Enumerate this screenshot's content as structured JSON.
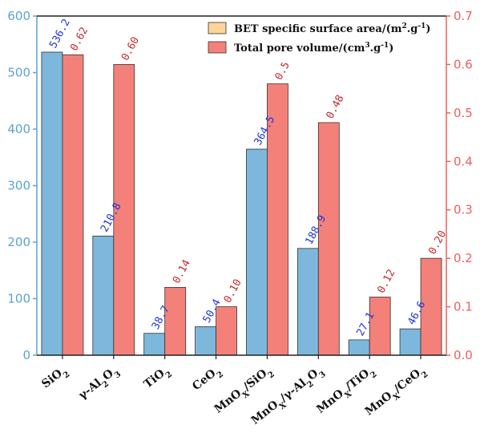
{
  "chart_data": {
    "type": "bar",
    "categories": [
      "SiO2",
      "γ-Al2O3",
      "TiO2",
      "CeO2",
      "MnOx/SiO2",
      "MnOx/γ-Al2O3",
      "MnOx/TiO2",
      "MnOx/CeO2"
    ],
    "category_labels": [
      [
        {
          "t": "SiO"
        },
        {
          "t": "2",
          "sub": true
        }
      ],
      [
        {
          "t": "γ-Al"
        },
        {
          "t": "2",
          "sub": true
        },
        {
          "t": "O"
        },
        {
          "t": "3",
          "sub": true
        }
      ],
      [
        {
          "t": "TiO"
        },
        {
          "t": "2",
          "sub": true
        }
      ],
      [
        {
          "t": "CeO"
        },
        {
          "t": "2",
          "sub": true
        }
      ],
      [
        {
          "t": "MnO"
        },
        {
          "t": "X",
          "sub": true
        },
        {
          "t": "/SiO"
        },
        {
          "t": "2",
          "sub": true
        }
      ],
      [
        {
          "t": "MnO"
        },
        {
          "t": "X",
          "sub": true
        },
        {
          "t": "/γ-Al"
        },
        {
          "t": "2",
          "sub": true
        },
        {
          "t": "O"
        },
        {
          "t": "3",
          "sub": true
        }
      ],
      [
        {
          "t": "MnO"
        },
        {
          "t": "X",
          "sub": true
        },
        {
          "t": "/TiO"
        },
        {
          "t": "2",
          "sub": true
        }
      ],
      [
        {
          "t": "MnO"
        },
        {
          "t": "X",
          "sub": true
        },
        {
          "t": "/CeO"
        },
        {
          "t": "2",
          "sub": true
        }
      ]
    ],
    "series": [
      {
        "name": "BET specific surface area/(m2.g-1)",
        "name_parts": [
          {
            "t": "BET specific surface area/(m"
          },
          {
            "t": "2",
            "sup": true
          },
          {
            "t": ".g"
          },
          {
            "t": "-1",
            "sup": true
          },
          {
            "t": ")"
          }
        ],
        "axis": "left",
        "values": [
          536.2,
          210.8,
          38.7,
          50.4,
          364.5,
          188.9,
          27.1,
          46.6
        ],
        "labels": [
          "536.2",
          "210.8",
          "38.7",
          "50.4",
          "364.5",
          "188.9",
          "27.1",
          "46.6"
        ],
        "color": "#7db8dc",
        "label_color": "#1f35d8"
      },
      {
        "name": "Total pore volume/(cm3.g-1)",
        "name_parts": [
          {
            "t": "Total pore volume/(cm"
          },
          {
            "t": "3",
            "sup": true
          },
          {
            "t": ".g"
          },
          {
            "t": "-1",
            "sup": true
          },
          {
            "t": ")"
          }
        ],
        "axis": "right",
        "values": [
          0.62,
          0.6,
          0.14,
          0.1,
          0.56,
          0.48,
          0.12,
          0.2
        ],
        "labels": [
          "0.62",
          "0.60",
          "0.14",
          "0.10",
          "0.56",
          "0.48",
          "0.12",
          "0.20"
        ],
        "color": "#f4807a",
        "label_color": "#c62828"
      }
    ],
    "y_left": {
      "lim": [
        0,
        600
      ],
      "ticks": [
        "0",
        "100",
        "200",
        "300",
        "400",
        "500",
        "600"
      ],
      "color": "#5ba3d0"
    },
    "y_right": {
      "lim": [
        0,
        0.7
      ],
      "ticks": [
        "0.0",
        "0.1",
        "0.2",
        "0.3",
        "0.4",
        "0.5",
        "0.6",
        "0.7"
      ],
      "color": "#f0605a"
    },
    "legend_position": "top-right",
    "grid": false
  }
}
